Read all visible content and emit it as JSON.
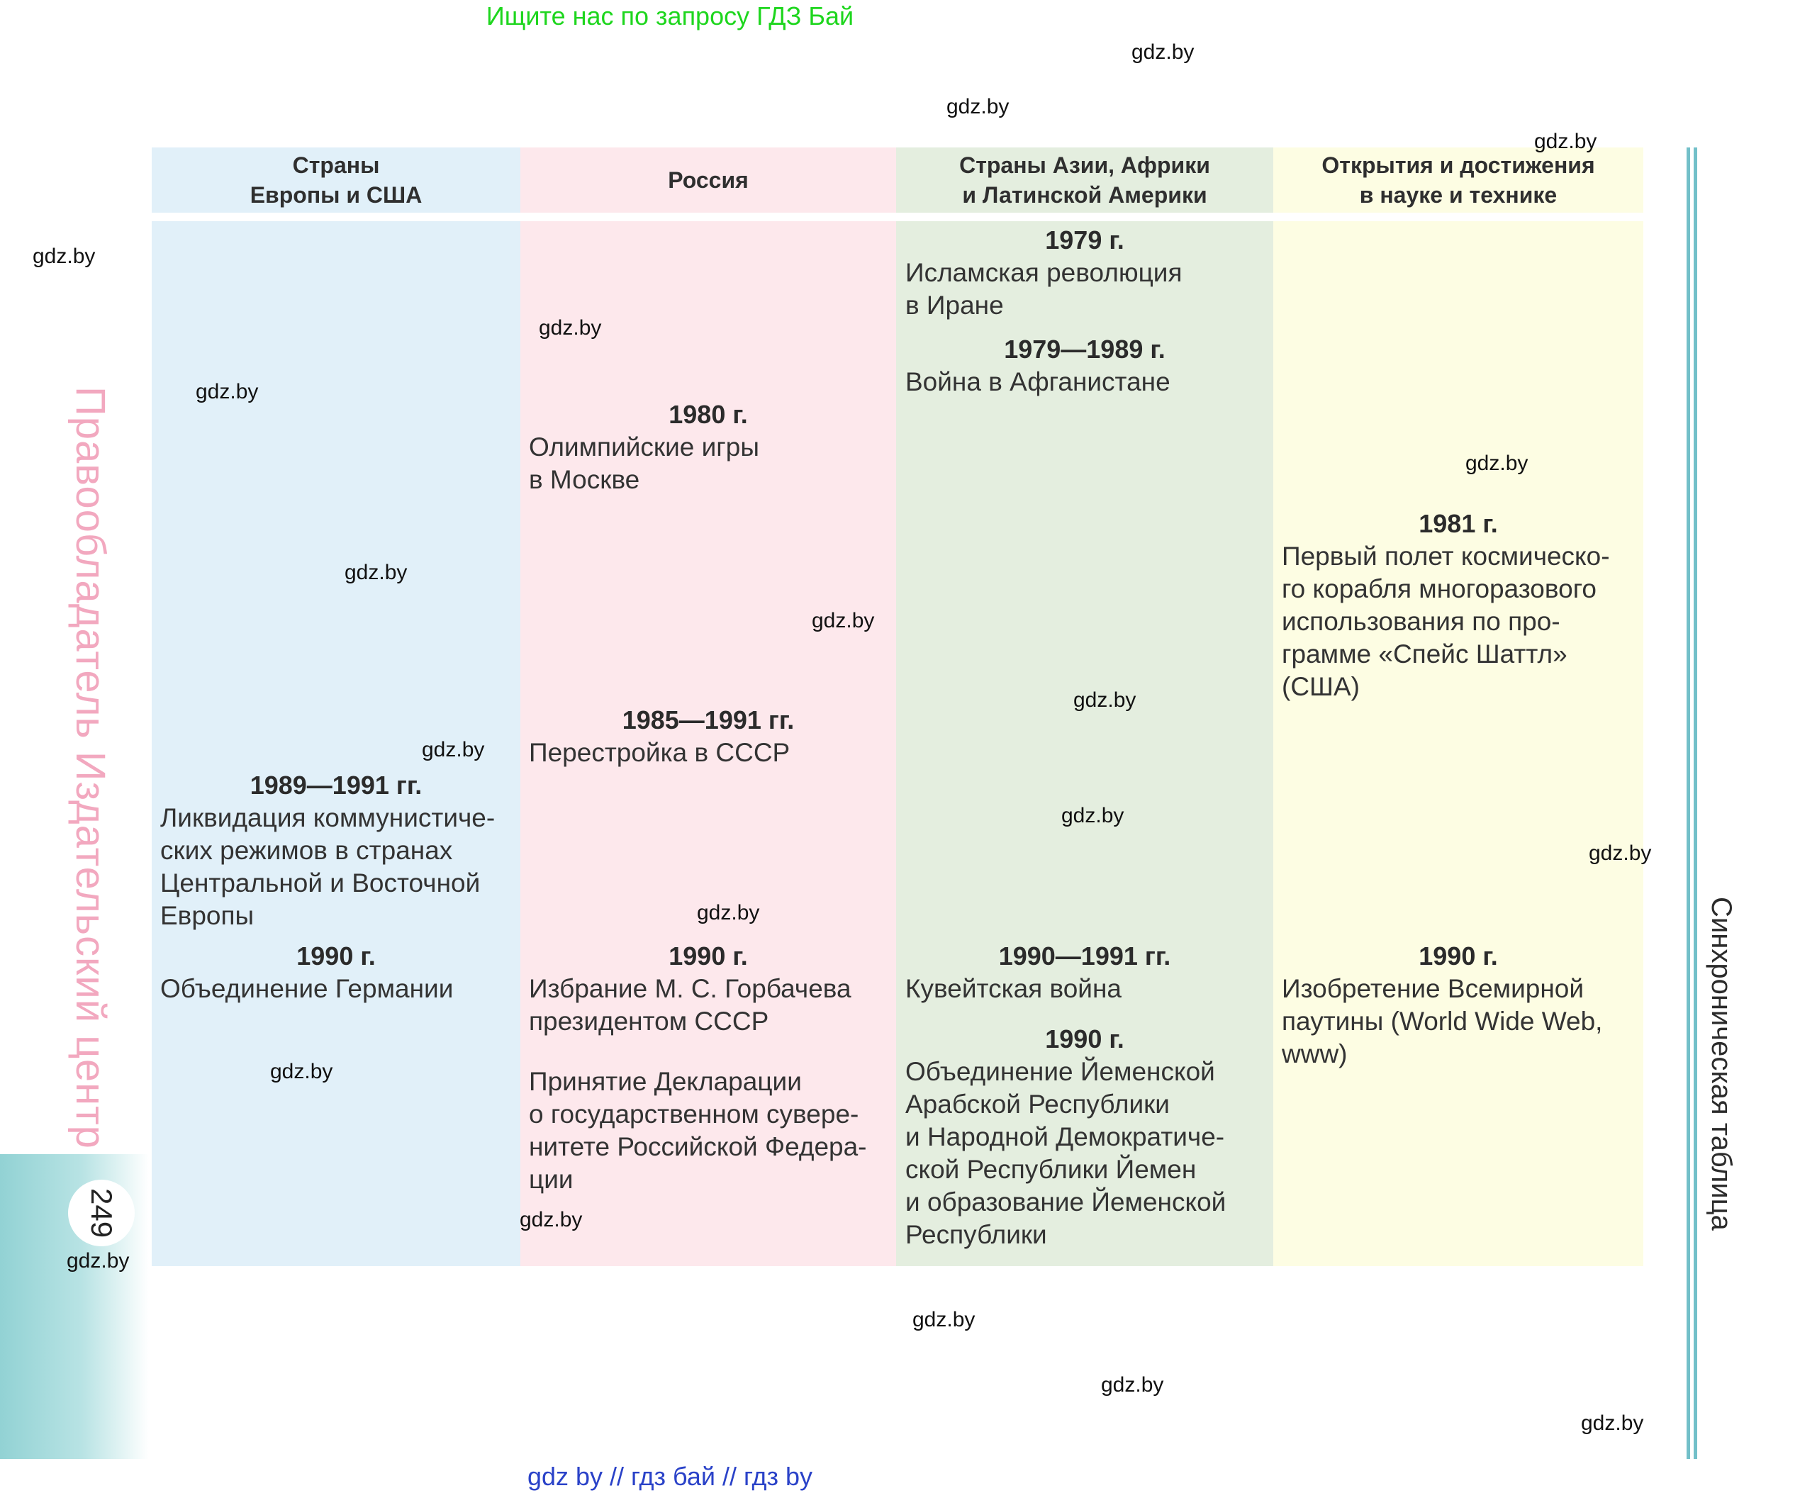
{
  "promo": "Ищите нас по запросу ГДЗ Бай",
  "watermark": "gdz.by",
  "headers": [
    "Страны\nЕвропы и США",
    "Россия",
    "Страны Азии, Африки\nи Латинской Америки",
    "Открытия и достижения\nв науке и технике"
  ],
  "col1": {
    "e1_year": "1989—1991 гг.",
    "e1_text": "Ликвидация коммунистиче-\nских режимов в странах\nЦентральной и Восточной\nЕвропы",
    "e2_year": "1990 г.",
    "e2_text": "Объединение Германии"
  },
  "col2": {
    "e1_year": "1980 г.",
    "e1_text": "Олимпийские игры\nв Москве",
    "e2_year": "1985—1991 гг.",
    "e2_text": "Перестройка в СССР",
    "e3_year": "1990 г.",
    "e3_text": "Избрание М. С. Горбачева\nпрезидентом СССР",
    "e4_text": "Принятие Декларации\nо государственном сувере-\nнитете Российской Федера-\nции"
  },
  "col3": {
    "e1_year": "1979 г.",
    "e1_text": "Исламская революция\nв Иране",
    "e2_year": "1979—1989 г.",
    "e2_text": "Война в Афганистане",
    "e3_year": "1990—1991 гг.",
    "e3_text": "Кувейтская война",
    "e4_year": "1990 г.",
    "e4_text": "Объединение Йеменской\nАрабской Республики\nи Народной Демократиче-\nской Республики Йемен\nи образование Йеменской\nРеспублики"
  },
  "col4": {
    "e1_year": "1981 г.",
    "e1_text": "Первый полет космическо-\nго корабля многоразового\nиспользования по про-\nграмме «Спейс Шаттл»\n(США)",
    "e2_year": "1990 г.",
    "e2_text": "Изобретение Всемирной\nпаутины (World Wide Web,\nwww)"
  },
  "side_publisher": "Правообладатель Издательский центр БГУ",
  "page_number": "249",
  "side_title": "Синхроническая таблица",
  "footer": "gdz by  //  гдз бай  //  гдз by",
  "colors": {
    "col1": "#e1f0f9",
    "col2": "#fde8ec",
    "col3": "#e4eedf",
    "col4": "#fdfde3",
    "promo": "#1ed61e",
    "footer": "#2a42c8"
  }
}
